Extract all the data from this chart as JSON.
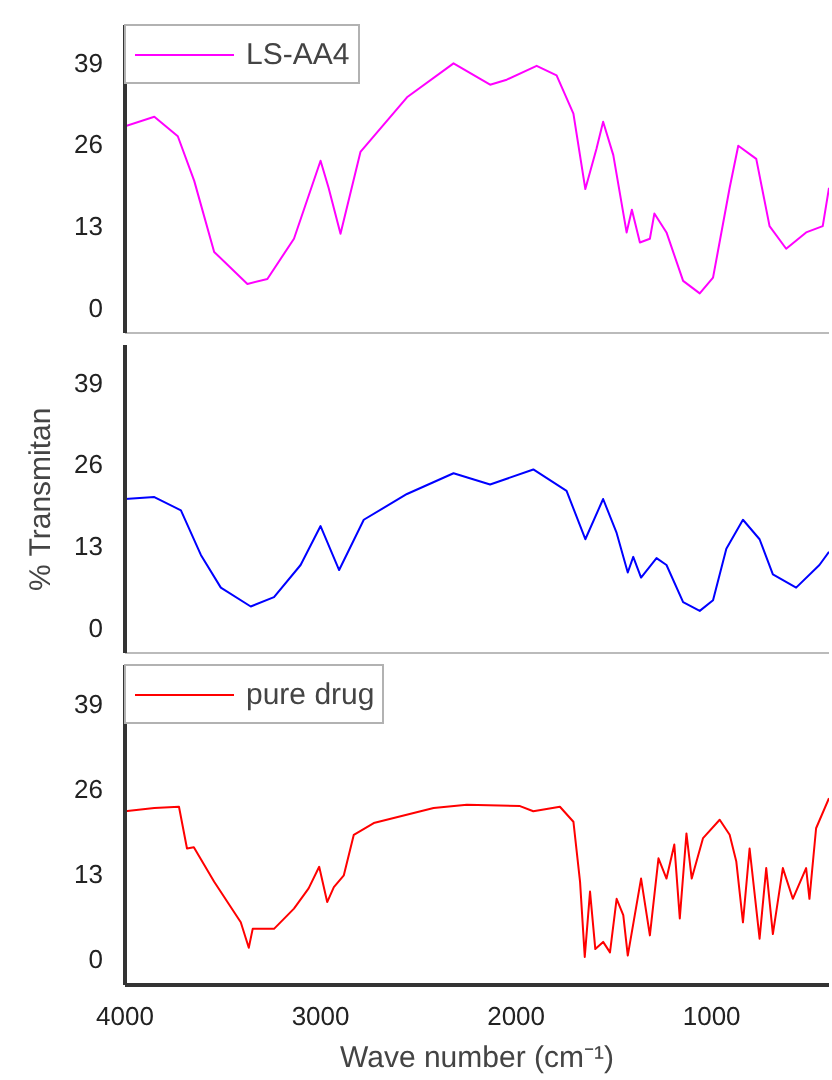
{
  "chart_data": [
    {
      "type": "line",
      "xlim": [
        4000,
        400
      ],
      "xticks": [
        4000,
        3000,
        2000,
        1000
      ],
      "ylim": [
        -4,
        45
      ],
      "yticks": [
        0,
        13,
        26,
        39
      ],
      "tick_labels": "y",
      "grid": false,
      "legend": "top left",
      "series": [
        {
          "name": "LS-AA4",
          "color": "#ff00ff",
          "x": [
            4000,
            3850,
            3730,
            3646,
            3544,
            3374,
            3272,
            3136,
            3000,
            2959,
            2898,
            2796,
            2558,
            2320,
            2133,
            2048,
            1895,
            1793,
            1707,
            1646,
            1589,
            1555,
            1503,
            1435,
            1408,
            1367,
            1316,
            1293,
            1231,
            1146,
            1061,
            993,
            908,
            864,
            772,
            704,
            619,
            517,
            432,
            400
          ],
          "values": [
            28.9,
            30.4,
            27.3,
            20.2,
            8.9,
            3.8,
            4.6,
            11,
            23.4,
            19.1,
            11.8,
            24.8,
            33.5,
            38.9,
            35.5,
            36.3,
            38.5,
            37,
            30.9,
            18.9,
            25.3,
            29.6,
            24.3,
            12,
            15.6,
            10.4,
            11,
            15,
            12,
            4.3,
            2.3,
            4.8,
            19.1,
            25.8,
            23.7,
            13,
            9.4,
            12,
            13,
            19.1
          ]
        }
      ]
    },
    {
      "type": "line",
      "xlim": [
        4000,
        400
      ],
      "xticks": [
        4000,
        3000,
        2000,
        1000
      ],
      "ylim": [
        -4,
        45
      ],
      "yticks": [
        0,
        13,
        26,
        39
      ],
      "tick_labels": "y",
      "grid": false,
      "ylabel": "% Transmitan",
      "series": [
        {
          "color": "#0000ff",
          "x": [
            4000,
            3850,
            3714,
            3612,
            3510,
            3357,
            3238,
            3102,
            3000,
            2905,
            2779,
            2558,
            2320,
            2133,
            1912,
            1742,
            1646,
            1555,
            1486,
            1429,
            1401,
            1361,
            1282,
            1231,
            1146,
            1061,
            993,
            925,
            840,
            755,
            687,
            568,
            449,
            400
          ],
          "values": [
            20.5,
            20.8,
            18.7,
            11.6,
            6.4,
            3.4,
            4.9,
            10,
            16.2,
            9.2,
            17.2,
            21.3,
            24.6,
            22.8,
            25.2,
            21.8,
            14.1,
            20.5,
            15.1,
            8.8,
            11.3,
            8,
            11.1,
            10,
            4.1,
            2.7,
            4.4,
            12.6,
            17.2,
            14.1,
            8.5,
            6.4,
            10,
            12.1
          ]
        }
      ]
    },
    {
      "type": "line",
      "xlim": [
        4000,
        400
      ],
      "xticks": [
        4000,
        3000,
        2000,
        1000
      ],
      "ylim": [
        -4,
        45
      ],
      "yticks": [
        0,
        13,
        26,
        39
      ],
      "grid": false,
      "legend": "top left",
      "xlabel": "Wave number (cm⁻¹)",
      "series": [
        {
          "name": "pure drug",
          "color": "#ff0000",
          "x": [
            4000,
            3850,
            3724,
            3683,
            3648,
            3544,
            3408,
            3367,
            3347,
            3238,
            3136,
            3061,
            3007,
            2966,
            2932,
            2881,
            2830,
            2728,
            2422,
            2252,
            1980,
            1912,
            1776,
            1707,
            1673,
            1649,
            1622,
            1595,
            1555,
            1520,
            1486,
            1452,
            1429,
            1361,
            1316,
            1272,
            1231,
            1191,
            1163,
            1129,
            1102,
            1044,
            959,
            908,
            874,
            840,
            806,
            755,
            721,
            687,
            636,
            585,
            517,
            500,
            466,
            400
          ],
          "values": [
            22.6,
            23.1,
            23.3,
            16.9,
            17.1,
            11.8,
            5.6,
            1.7,
            4.6,
            4.6,
            7.7,
            10.8,
            14.1,
            8.7,
            11,
            12.8,
            19,
            20.8,
            23.1,
            23.6,
            23.4,
            22.6,
            23.3,
            21,
            11.8,
            0.3,
            10.3,
            1.5,
            2.6,
            1,
            9.2,
            6.7,
            0.5,
            12.3,
            3.6,
            15.4,
            12.3,
            17.5,
            6.2,
            19.2,
            12.3,
            18.5,
            21.3,
            19,
            14.9,
            5.6,
            16.9,
            3.1,
            13.9,
            3.8,
            13.9,
            9.2,
            13.9,
            9.2,
            20,
            24.6
          ]
        }
      ]
    }
  ]
}
